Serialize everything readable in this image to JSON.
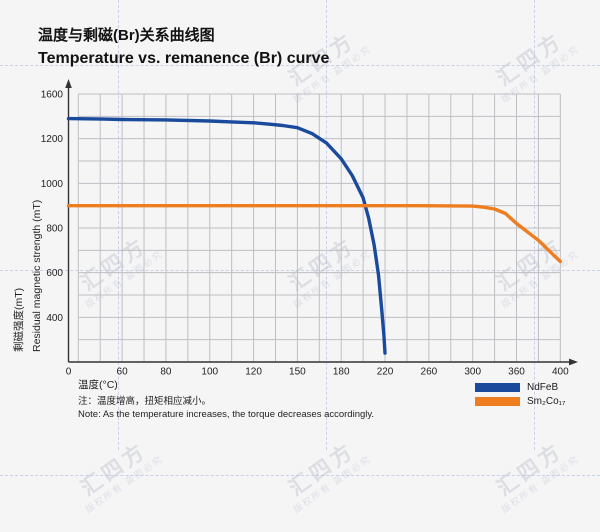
{
  "title": {
    "zh": "温度与剩磁(Br)关系曲线图",
    "en": "Temperature vs. remanence (Br) curve"
  },
  "watermark": {
    "brand": "汇四方",
    "line2": "版权所有 盗图必究"
  },
  "note": {
    "zh": "注：温度增高，扭矩相应减小。",
    "en": "Note: As the temperature increases, the torque decreases accordingly."
  },
  "chart_data": {
    "type": "line",
    "title_zh": "温度与剩磁(Br)关系曲线图",
    "title_en": "Temperature vs. remanence (Br) curve",
    "xlabel": "温度(°C)",
    "ylabel_zh": "剩磁强度(mT)",
    "ylabel_en": "Residual magnetic strength (mT)",
    "x_ticks": [
      0,
      60,
      80,
      100,
      120,
      150,
      180,
      220,
      260,
      300,
      360,
      400
    ],
    "y_ticks": [
      1600,
      1200,
      1000,
      800,
      600,
      400,
      0
    ],
    "grid": true,
    "legend_position": "bottom-right",
    "axis_color": "#333333",
    "grid_color": "#bfbfc3",
    "series": [
      {
        "name": "NdFeB",
        "color": "#1a4a9c",
        "points": [
          [
            0,
            1380
          ],
          [
            20,
            1378
          ],
          [
            40,
            1375
          ],
          [
            60,
            1372
          ],
          [
            80,
            1368
          ],
          [
            100,
            1358
          ],
          [
            110,
            1350
          ],
          [
            120,
            1342
          ],
          [
            130,
            1330
          ],
          [
            140,
            1318
          ],
          [
            150,
            1298
          ],
          [
            160,
            1245
          ],
          [
            170,
            1180
          ],
          [
            180,
            1110
          ],
          [
            190,
            1035
          ],
          [
            200,
            935
          ],
          [
            205,
            845
          ],
          [
            210,
            725
          ],
          [
            214,
            590
          ],
          [
            217,
            430
          ],
          [
            219,
            240
          ],
          [
            220,
            80
          ]
        ]
      },
      {
        "name": "Sm₂Co₁₇",
        "color": "#ee7d1f",
        "points": [
          [
            0,
            900
          ],
          [
            50,
            900
          ],
          [
            100,
            900
          ],
          [
            150,
            900
          ],
          [
            200,
            900
          ],
          [
            250,
            900
          ],
          [
            300,
            898
          ],
          [
            315,
            893
          ],
          [
            330,
            885
          ],
          [
            345,
            865
          ],
          [
            360,
            820
          ],
          [
            380,
            745
          ],
          [
            400,
            650
          ]
        ]
      }
    ]
  }
}
